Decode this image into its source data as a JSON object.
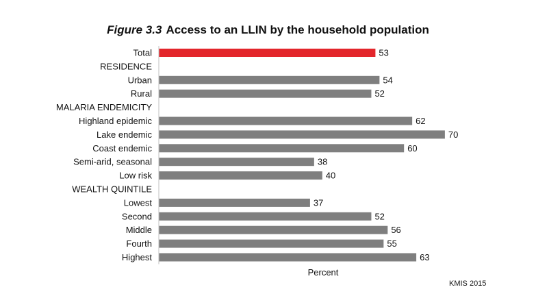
{
  "title_prefix": "Figure 3.3",
  "title_text": "Access to an LLIN by the household population",
  "source": "KMIS 2015",
  "colors": {
    "highlight": "#e3262b",
    "bar": "#7f7f7f"
  },
  "chart_data": {
    "type": "bar",
    "orientation": "horizontal",
    "xlabel": "Percent",
    "xlim": [
      0,
      100
    ],
    "grid": false,
    "rows": [
      {
        "label": "Total",
        "value": 53,
        "highlight": true
      },
      {
        "label": "RESIDENCE",
        "value": null
      },
      {
        "label": "Urban",
        "value": 54
      },
      {
        "label": "Rural",
        "value": 52
      },
      {
        "label": "MALARIA ENDEMICITY",
        "value": null
      },
      {
        "label": "Highland epidemic",
        "value": 62
      },
      {
        "label": "Lake endemic",
        "value": 70
      },
      {
        "label": "Coast endemic",
        "value": 60
      },
      {
        "label": "Semi-arid, seasonal",
        "value": 38
      },
      {
        "label": "Low risk",
        "value": 40
      },
      {
        "label": "WEALTH QUINTILE",
        "value": null
      },
      {
        "label": "Lowest",
        "value": 37
      },
      {
        "label": "Second",
        "value": 52
      },
      {
        "label": "Middle",
        "value": 56
      },
      {
        "label": "Fourth",
        "value": 55
      },
      {
        "label": "Highest",
        "value": 63
      }
    ]
  }
}
